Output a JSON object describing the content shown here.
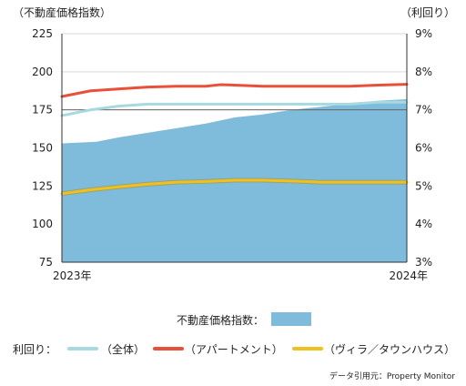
{
  "chart_data": {
    "type": "area",
    "left_axis_label": "（不動産価格指数）",
    "right_axis_label": "（利回り）",
    "x_start_label": "2023年",
    "x_end_label": "2024年",
    "y_left": {
      "min": 75,
      "max": 225,
      "ticks": [
        "225",
        "200",
        "175",
        "150",
        "125",
        "100",
        "75"
      ]
    },
    "y_right": {
      "min": 3,
      "max": 9,
      "ticks": [
        "9%",
        "8%",
        "7%",
        "6%",
        "5%",
        "4%",
        "3%"
      ]
    },
    "x_range": [
      0,
      12
    ],
    "area_series": {
      "name": "不動産価格指数：",
      "color": "#7fbcdc",
      "x": [
        0,
        1.2,
        2,
        3,
        4,
        5,
        6,
        7,
        8,
        9,
        10,
        11,
        12
      ],
      "values": [
        153,
        154,
        157,
        160,
        163,
        166,
        170,
        172,
        175,
        177,
        179,
        181,
        182
      ]
    },
    "yield_label": "利回り：",
    "line_series": [
      {
        "name": "（全体）",
        "color": "#a8d8e0",
        "x": [
          0,
          1,
          2,
          3,
          4,
          5,
          6,
          7,
          8,
          9,
          10,
          11,
          12
        ],
        "values": [
          6.85,
          7.0,
          7.1,
          7.15,
          7.15,
          7.15,
          7.15,
          7.15,
          7.15,
          7.15,
          7.15,
          7.2,
          7.2
        ]
      },
      {
        "name": "（アパートメント）",
        "color": "#e8503a",
        "x": [
          0,
          1,
          2,
          3,
          4,
          5,
          5.5,
          6,
          7,
          8,
          9,
          10,
          11,
          12
        ],
        "values": [
          7.35,
          7.5,
          7.55,
          7.6,
          7.62,
          7.62,
          7.66,
          7.65,
          7.62,
          7.62,
          7.62,
          7.62,
          7.65,
          7.67
        ]
      },
      {
        "name": "（ヴィラ／タウンハウス）",
        "color": "#f0c020",
        "x": [
          0,
          1,
          2,
          3,
          4,
          5,
          6,
          7,
          8,
          9,
          10,
          11,
          12
        ],
        "values": [
          4.8,
          4.9,
          4.98,
          5.05,
          5.1,
          5.12,
          5.15,
          5.15,
          5.13,
          5.1,
          5.1,
          5.1,
          5.1
        ]
      }
    ],
    "reference_line_175": 175,
    "source": "データ引用元：Property Monitor"
  }
}
